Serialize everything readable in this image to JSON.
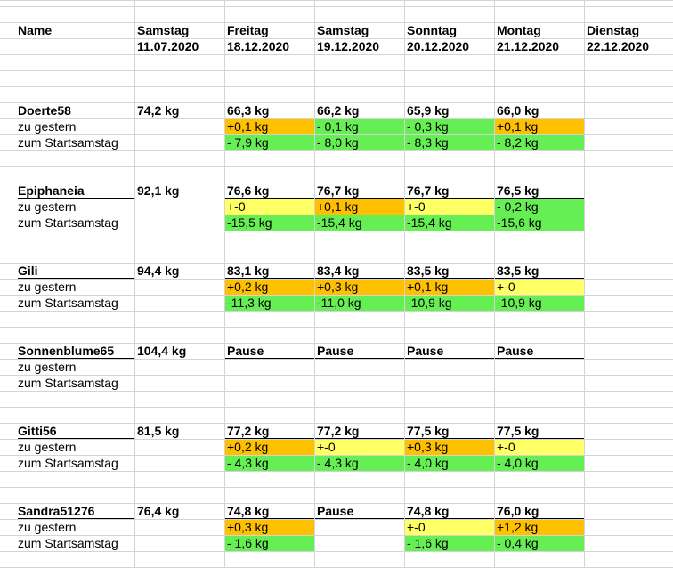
{
  "colors": {
    "orange": "#ffc000",
    "yellow": "#ffff66",
    "green": "#66ee55",
    "grid": "#d4d4d4"
  },
  "header": {
    "name_label": "Name",
    "days": [
      {
        "weekday": "Samstag",
        "date": "11.07.2020"
      },
      {
        "weekday": "Freitag",
        "date": "18.12.2020"
      },
      {
        "weekday": "Samstag",
        "date": "19.12.2020"
      },
      {
        "weekday": "Sonntag",
        "date": "20.12.2020"
      },
      {
        "weekday": "Montag",
        "date": "21.12.2020"
      },
      {
        "weekday": "Dienstag",
        "date": "22.12.2020"
      }
    ]
  },
  "row_labels": {
    "yesterday": "zu gestern",
    "start": "zum Startsamstag"
  },
  "people": [
    {
      "name": "Doerte58",
      "start": "74,2 kg",
      "weights": [
        "66,3 kg",
        "66,2 kg",
        "65,9 kg",
        "66,0 kg"
      ],
      "yesterday": [
        {
          "v": "+0,1 kg",
          "c": "orange"
        },
        {
          "v": "- 0,1 kg",
          "c": "green"
        },
        {
          "v": "- 0,3 kg",
          "c": "green"
        },
        {
          "v": "+0,1 kg",
          "c": "orange"
        }
      ],
      "start_diff": [
        {
          "v": "- 7,9 kg",
          "c": "green"
        },
        {
          "v": "- 8,0 kg",
          "c": "green"
        },
        {
          "v": "- 8,3 kg",
          "c": "green"
        },
        {
          "v": "- 8,2 kg",
          "c": "green"
        }
      ]
    },
    {
      "name": "Epiphaneia",
      "start": "92,1 kg",
      "weights": [
        "76,6 kg",
        "76,7 kg",
        "76,7 kg",
        "76,5 kg"
      ],
      "yesterday": [
        {
          "v": "+-0",
          "c": "yellow"
        },
        {
          "v": "+0,1 kg",
          "c": "orange"
        },
        {
          "v": "+-0",
          "c": "yellow"
        },
        {
          "v": "- 0,2 kg",
          "c": "green"
        }
      ],
      "start_diff": [
        {
          "v": "-15,5 kg",
          "c": "green"
        },
        {
          "v": "-15,4 kg",
          "c": "green"
        },
        {
          "v": "-15,4 kg",
          "c": "green"
        },
        {
          "v": "-15,6 kg",
          "c": "green"
        }
      ]
    },
    {
      "name": "Gili",
      "start": "94,4 kg",
      "weights": [
        "83,1 kg",
        "83,4 kg",
        "83,5 kg",
        "83,5 kg"
      ],
      "yesterday": [
        {
          "v": "+0,2 kg",
          "c": "orange"
        },
        {
          "v": "+0,3 kg",
          "c": "orange"
        },
        {
          "v": "+0,1 kg",
          "c": "orange"
        },
        {
          "v": "+-0",
          "c": "yellow"
        }
      ],
      "start_diff": [
        {
          "v": "-11,3 kg",
          "c": "green"
        },
        {
          "v": "-11,0 kg",
          "c": "green"
        },
        {
          "v": "-10,9 kg",
          "c": "green"
        },
        {
          "v": "-10,9 kg",
          "c": "green"
        }
      ]
    },
    {
      "name": "Sonnenblume65",
      "start": "104,4 kg",
      "weights": [
        "Pause",
        "Pause",
        "Pause",
        "Pause"
      ],
      "yesterday": [
        null,
        null,
        null,
        null
      ],
      "start_diff": [
        null,
        null,
        null,
        null
      ]
    },
    {
      "name": "Gitti56",
      "start": "81,5 kg",
      "weights": [
        "77,2 kg",
        "77,2 kg",
        "77,5 kg",
        "77,5 kg"
      ],
      "yesterday": [
        {
          "v": "+0,2 kg",
          "c": "orange"
        },
        {
          "v": "+-0",
          "c": "yellow"
        },
        {
          "v": "+0,3 kg",
          "c": "orange"
        },
        {
          "v": "+-0",
          "c": "yellow"
        }
      ],
      "start_diff": [
        {
          "v": "- 4,3 kg",
          "c": "green"
        },
        {
          "v": "- 4,3 kg",
          "c": "green"
        },
        {
          "v": "- 4,0 kg",
          "c": "green"
        },
        {
          "v": "- 4,0 kg",
          "c": "green"
        }
      ]
    },
    {
      "name": "Sandra51276",
      "start": "76,4 kg",
      "weights": [
        "74,8 kg",
        "Pause",
        "74,8 kg",
        "76,0 kg"
      ],
      "yesterday": [
        {
          "v": "+0,3 kg",
          "c": "orange"
        },
        null,
        {
          "v": "+-0",
          "c": "yellow"
        },
        {
          "v": "+1,2 kg",
          "c": "orange"
        }
      ],
      "start_diff": [
        {
          "v": "- 1,6 kg",
          "c": "green"
        },
        null,
        {
          "v": "- 1,6 kg",
          "c": "green"
        },
        {
          "v": "- 0,4 kg",
          "c": "green"
        }
      ]
    }
  ]
}
